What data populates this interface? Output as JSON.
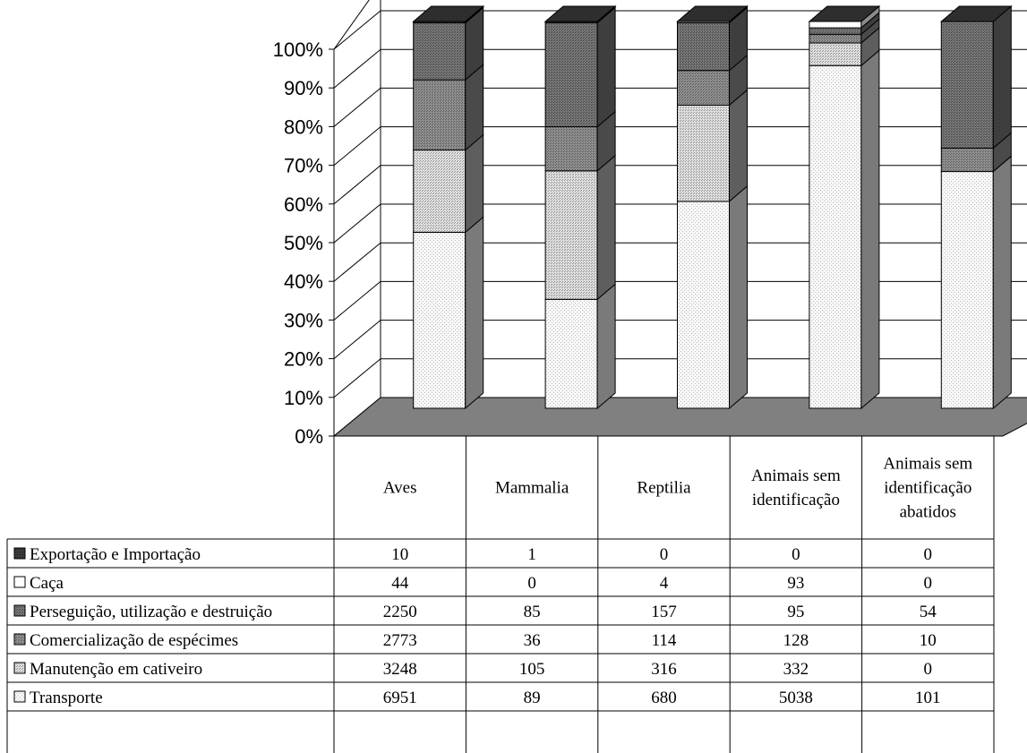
{
  "chart_data": {
    "type": "bar",
    "stacked": true,
    "normalized": true,
    "three_d": true,
    "categories": [
      [
        "Aves"
      ],
      [
        "Mammalia"
      ],
      [
        "Reptilia"
      ],
      [
        "Animais sem",
        "identificação"
      ],
      [
        "Animais sem",
        "identificação",
        "abatidos"
      ]
    ],
    "y_ticks": [
      "0%",
      "10%",
      "20%",
      "30%",
      "40%",
      "50%",
      "60%",
      "70%",
      "80%",
      "90%",
      "100%"
    ],
    "ylim": [
      0,
      100
    ],
    "grid": true,
    "legend_placement": "data-table-left",
    "series": [
      {
        "name": "Transporte",
        "values": [
          6951,
          89,
          680,
          5038,
          101
        ],
        "front_color": "#f4f4f4",
        "side_color": "#7a7a7a",
        "top_color": "#cfcfcf"
      },
      {
        "name": "Manutenção em cativeiro",
        "values": [
          3248,
          105,
          316,
          332,
          0
        ],
        "front_color": "#d4d4d4",
        "side_color": "#5e5e5e",
        "top_color": "#b0b0b0"
      },
      {
        "name": "Comercialização de espécimes",
        "values": [
          2773,
          36,
          114,
          128,
          10
        ],
        "front_color": "#9c9c9c",
        "side_color": "#4a4a4a",
        "top_color": "#858585"
      },
      {
        "name": "Perseguição, utilização e destruição",
        "values": [
          2250,
          85,
          157,
          95,
          54
        ],
        "front_color": "#7c7c7c",
        "side_color": "#3e3e3e",
        "top_color": "#6a6a6a"
      },
      {
        "name": "Caça",
        "values": [
          44,
          0,
          4,
          93,
          0
        ],
        "front_color": "#ffffff",
        "side_color": "#8a8a8a",
        "top_color": "#e0e0e0"
      },
      {
        "name": "Exportação e Importação",
        "values": [
          10,
          1,
          0,
          0,
          0
        ],
        "front_color": "#3a3a3a",
        "side_color": "#1e1e1e",
        "top_color": "#2a2a2a"
      }
    ],
    "table_row_order": [
      "Exportação e Importação",
      "Caça",
      "Perseguição, utilização e destruição",
      "Comercialização de espécimes",
      "Manutenção em cativeiro",
      "Transporte"
    ],
    "floor_color": "#808080"
  }
}
